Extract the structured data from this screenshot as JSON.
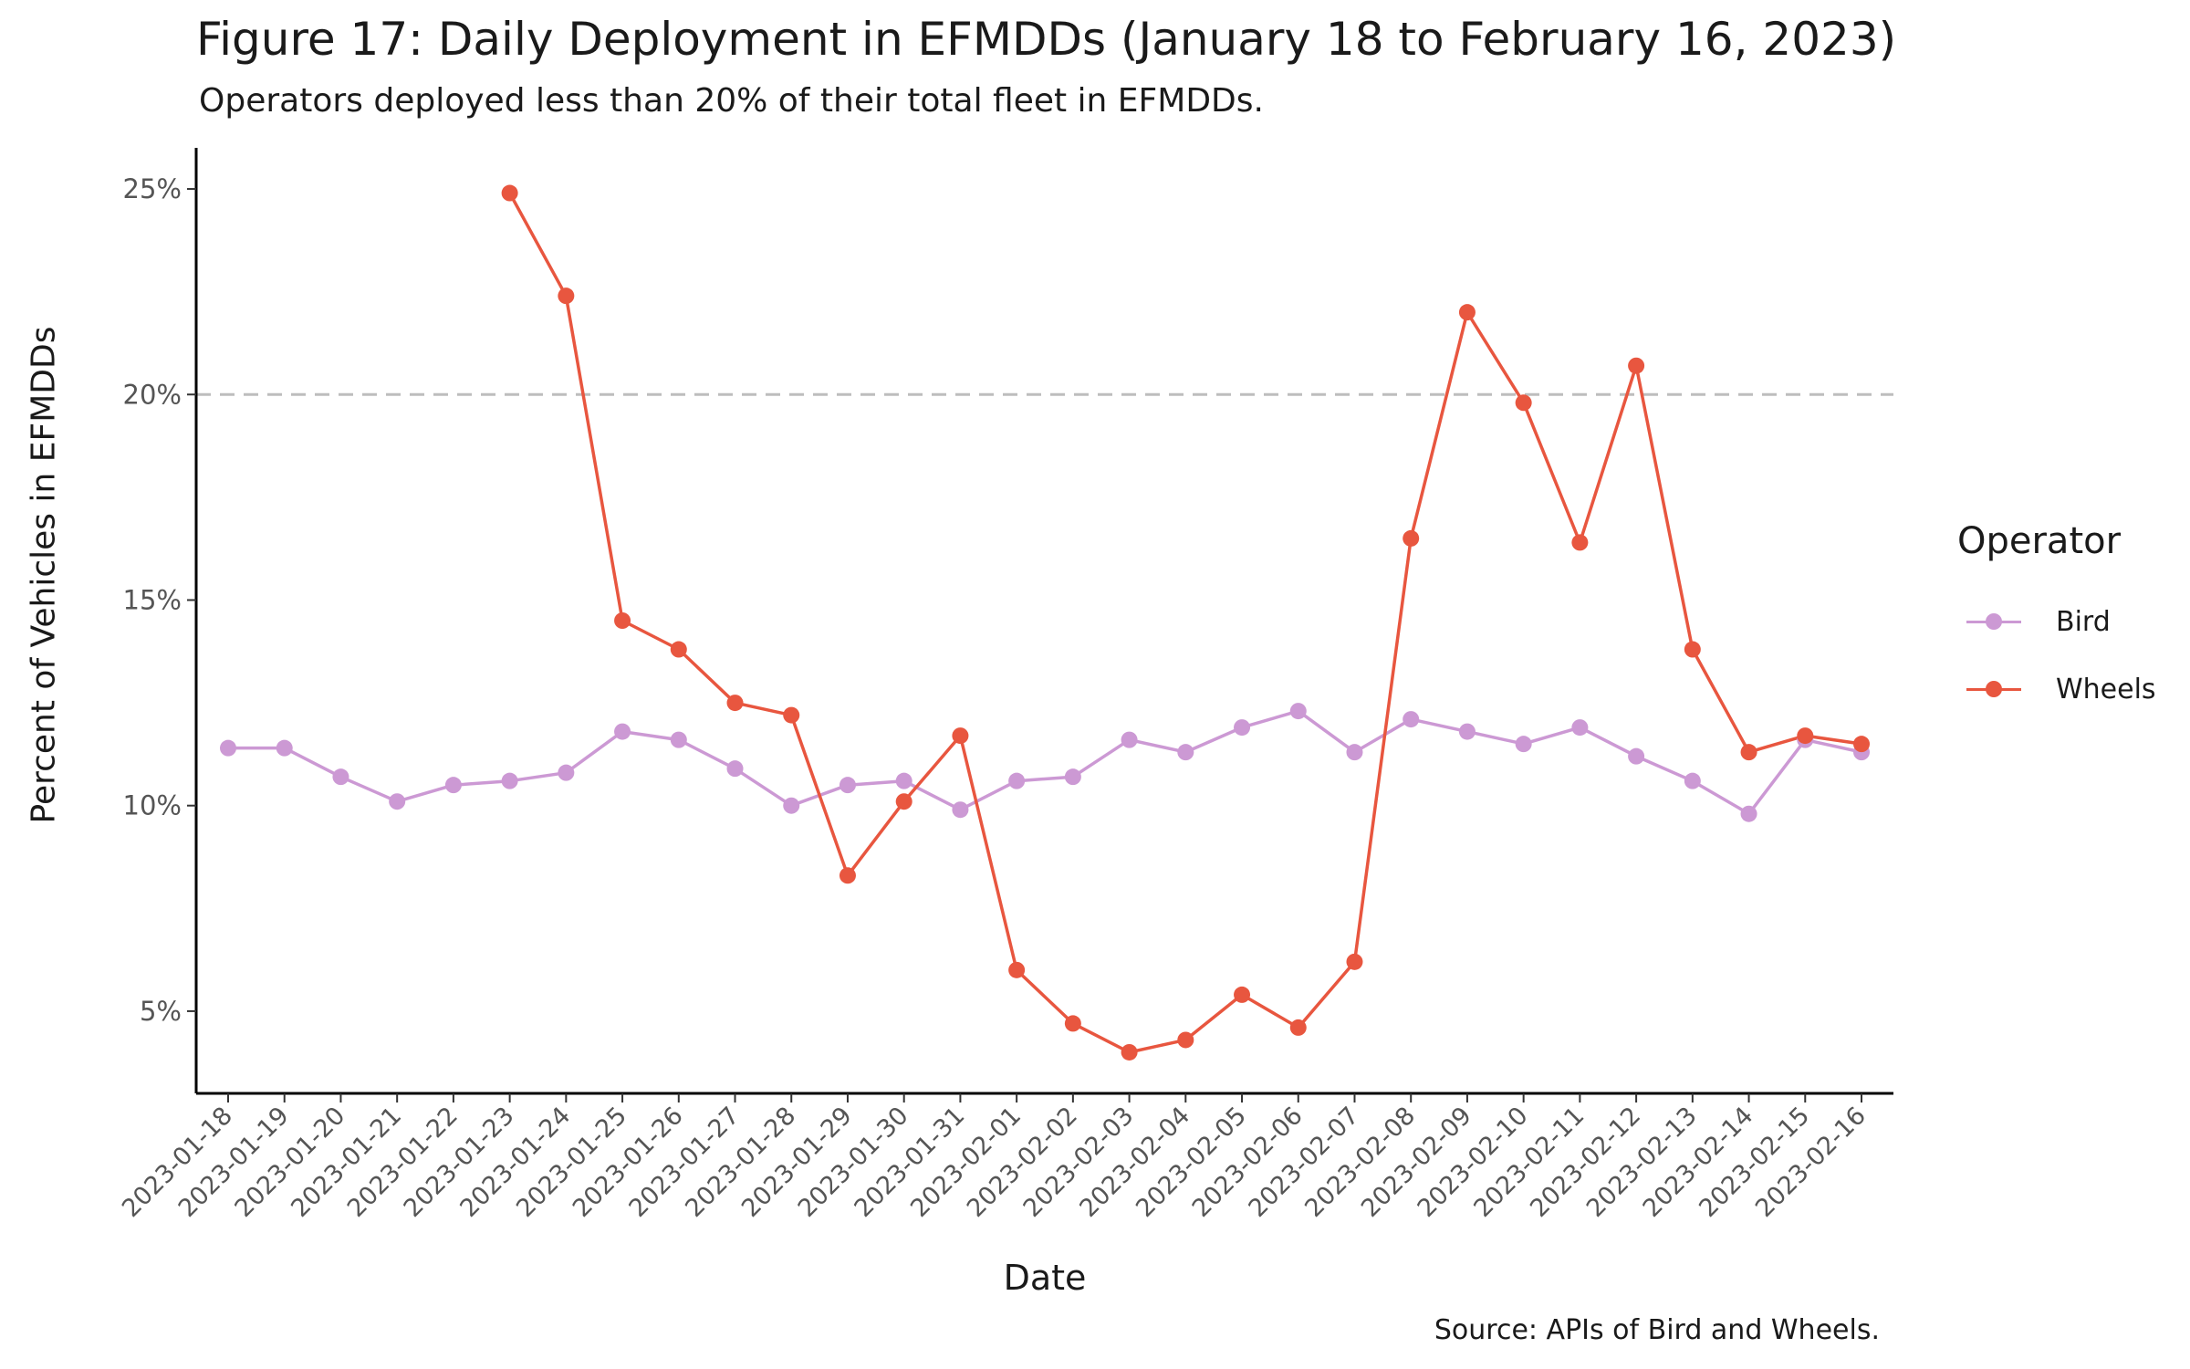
{
  "chart_data": {
    "type": "line",
    "title": "Figure 17: Daily Deployment in EFMDDs (January 18 to February 16, 2023)",
    "subtitle": "Operators deployed less than 20% of their total fleet in EFMDDs.",
    "xlabel": "Date",
    "ylabel": "Percent of Vehicles in EFMDDs",
    "caption": "Source: APIs of Bird and Wheels.",
    "legend_title": "Operator",
    "legend_position": "right",
    "grid": false,
    "ylim": [
      3,
      26
    ],
    "y_ticks": [
      5,
      10,
      15,
      20,
      25
    ],
    "y_tick_labels": [
      "5%",
      "10%",
      "15%",
      "20%",
      "25%"
    ],
    "reference_line": {
      "y": 20,
      "style": "dashed",
      "color": "#bdbdbd"
    },
    "categories": [
      "2023-01-18",
      "2023-01-19",
      "2023-01-20",
      "2023-01-21",
      "2023-01-22",
      "2023-01-23",
      "2023-01-24",
      "2023-01-25",
      "2023-01-26",
      "2023-01-27",
      "2023-01-28",
      "2023-01-29",
      "2023-01-30",
      "2023-01-31",
      "2023-02-01",
      "2023-02-02",
      "2023-02-03",
      "2023-02-04",
      "2023-02-05",
      "2023-02-06",
      "2023-02-07",
      "2023-02-08",
      "2023-02-09",
      "2023-02-10",
      "2023-02-11",
      "2023-02-12",
      "2023-02-13",
      "2023-02-14",
      "2023-02-15",
      "2023-02-16"
    ],
    "series": [
      {
        "name": "Bird",
        "color": "#cc99d4",
        "values": [
          11.4,
          11.4,
          10.7,
          10.1,
          10.5,
          10.6,
          10.8,
          11.8,
          11.6,
          10.9,
          10.0,
          10.5,
          10.6,
          9.9,
          10.6,
          10.7,
          11.6,
          11.3,
          11.9,
          12.3,
          11.3,
          12.1,
          11.8,
          11.5,
          11.9,
          11.2,
          10.6,
          9.8,
          11.6,
          11.3
        ]
      },
      {
        "name": "Wheels",
        "color": "#e8563f",
        "values": [
          null,
          null,
          null,
          null,
          null,
          24.9,
          22.4,
          14.5,
          13.8,
          12.5,
          12.2,
          8.3,
          10.1,
          11.7,
          6.0,
          4.7,
          4.0,
          4.3,
          5.4,
          4.6,
          6.2,
          16.5,
          22.0,
          19.8,
          16.4,
          20.7,
          13.8,
          11.3,
          11.7,
          11.5
        ]
      }
    ]
  }
}
